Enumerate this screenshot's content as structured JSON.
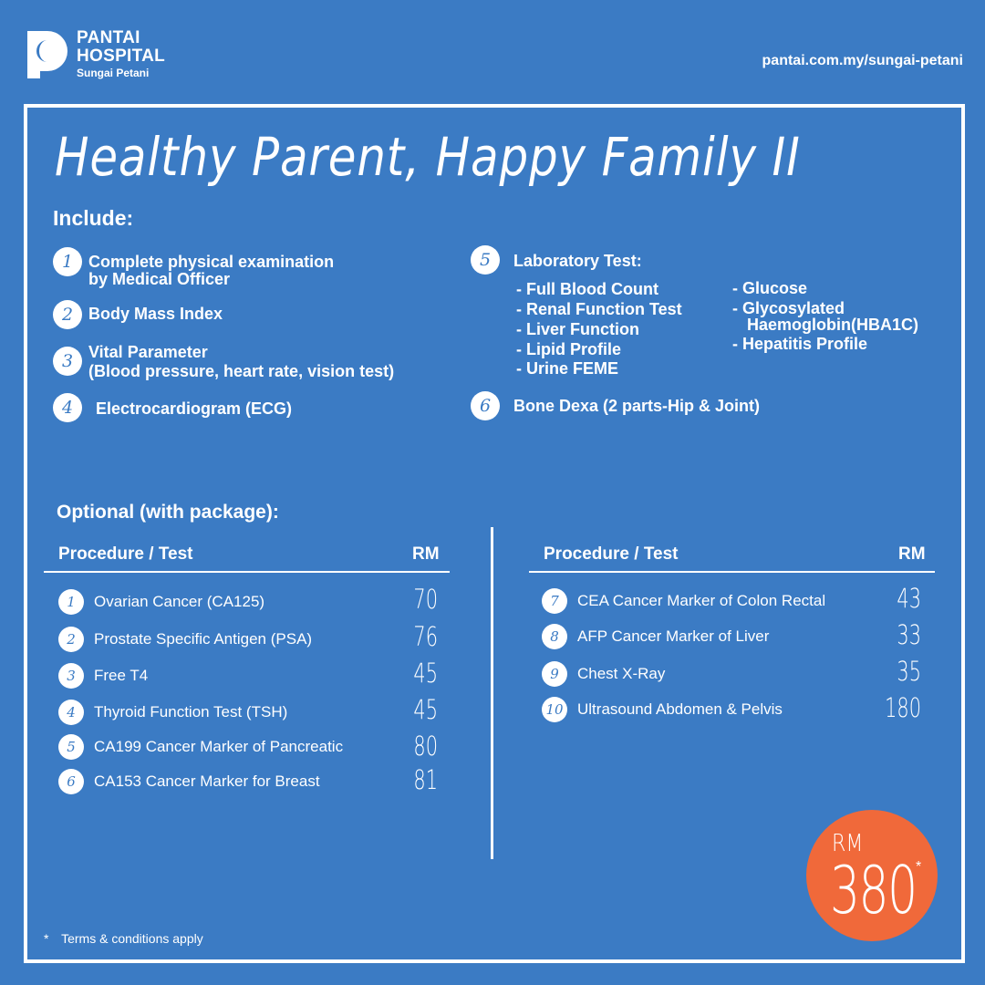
{
  "header": {
    "brand_line1": "PANTAI",
    "brand_line2": "HOSPITAL",
    "brand_location": "Sungai Petani",
    "url": "pantai.com.my/sungai-petani"
  },
  "title": "Healthy Parent, Happy Family II",
  "include_label": "Include:",
  "include_items": [
    {
      "num": "1",
      "line1": "Complete physical examination",
      "line2": "by Medical Officer"
    },
    {
      "num": "2",
      "line1": "Body Mass Index"
    },
    {
      "num": "3",
      "line1": "Vital Parameter",
      "line2": "(Blood pressure, heart rate, vision test)"
    },
    {
      "num": "4",
      "line1": "Electrocardiogram (ECG)"
    },
    {
      "num": "5",
      "line1": "Laboratory Test:"
    },
    {
      "num": "6",
      "line1": "Bone Dexa (2 parts-Hip & Joint)"
    }
  ],
  "lab_tests_col1": [
    "- Full Blood Count",
    "- Renal Function Test",
    "- Liver Function",
    "- Lipid Profile",
    "- Urine FEME"
  ],
  "lab_tests_col2": [
    "- Glucose",
    "- Glycosylated",
    "Haemoglobin(HBA1C)",
    "- Hepatitis Profile"
  ],
  "optional_label": "Optional (with package):",
  "table_headers": {
    "procedure": "Procedure / Test",
    "price": "RM"
  },
  "optional_left": [
    {
      "num": "1",
      "name": "Ovarian Cancer (CA125)",
      "price": "70"
    },
    {
      "num": "2",
      "name": "Prostate Specific Antigen (PSA)",
      "price": "76"
    },
    {
      "num": "3",
      "name": "Free T4",
      "price": "45"
    },
    {
      "num": "4",
      "name": "Thyroid Function Test (TSH)",
      "price": "45"
    },
    {
      "num": "5",
      "name": "CA199 Cancer Marker of Pancreatic",
      "price": "80"
    },
    {
      "num": "6",
      "name": "CA153 Cancer Marker for Breast",
      "price": "81"
    }
  ],
  "optional_right": [
    {
      "num": "7",
      "name": "CEA Cancer Marker of Colon Rectal",
      "price": "43"
    },
    {
      "num": "8",
      "name": "AFP Cancer Marker of Liver",
      "price": "33"
    },
    {
      "num": "9",
      "name": "Chest X-Ray",
      "price": "35"
    },
    {
      "num": "10",
      "name": "Ultrasound Abdomen & Pelvis",
      "price": "180"
    }
  ],
  "price_badge": {
    "currency": "RM",
    "value": "380",
    "asterisk": "*"
  },
  "terms": {
    "asterisk": "*",
    "text": "Terms & conditions apply"
  },
  "colors": {
    "background": "#3b7bc4",
    "badge": "#f0693a",
    "text": "#ffffff"
  }
}
